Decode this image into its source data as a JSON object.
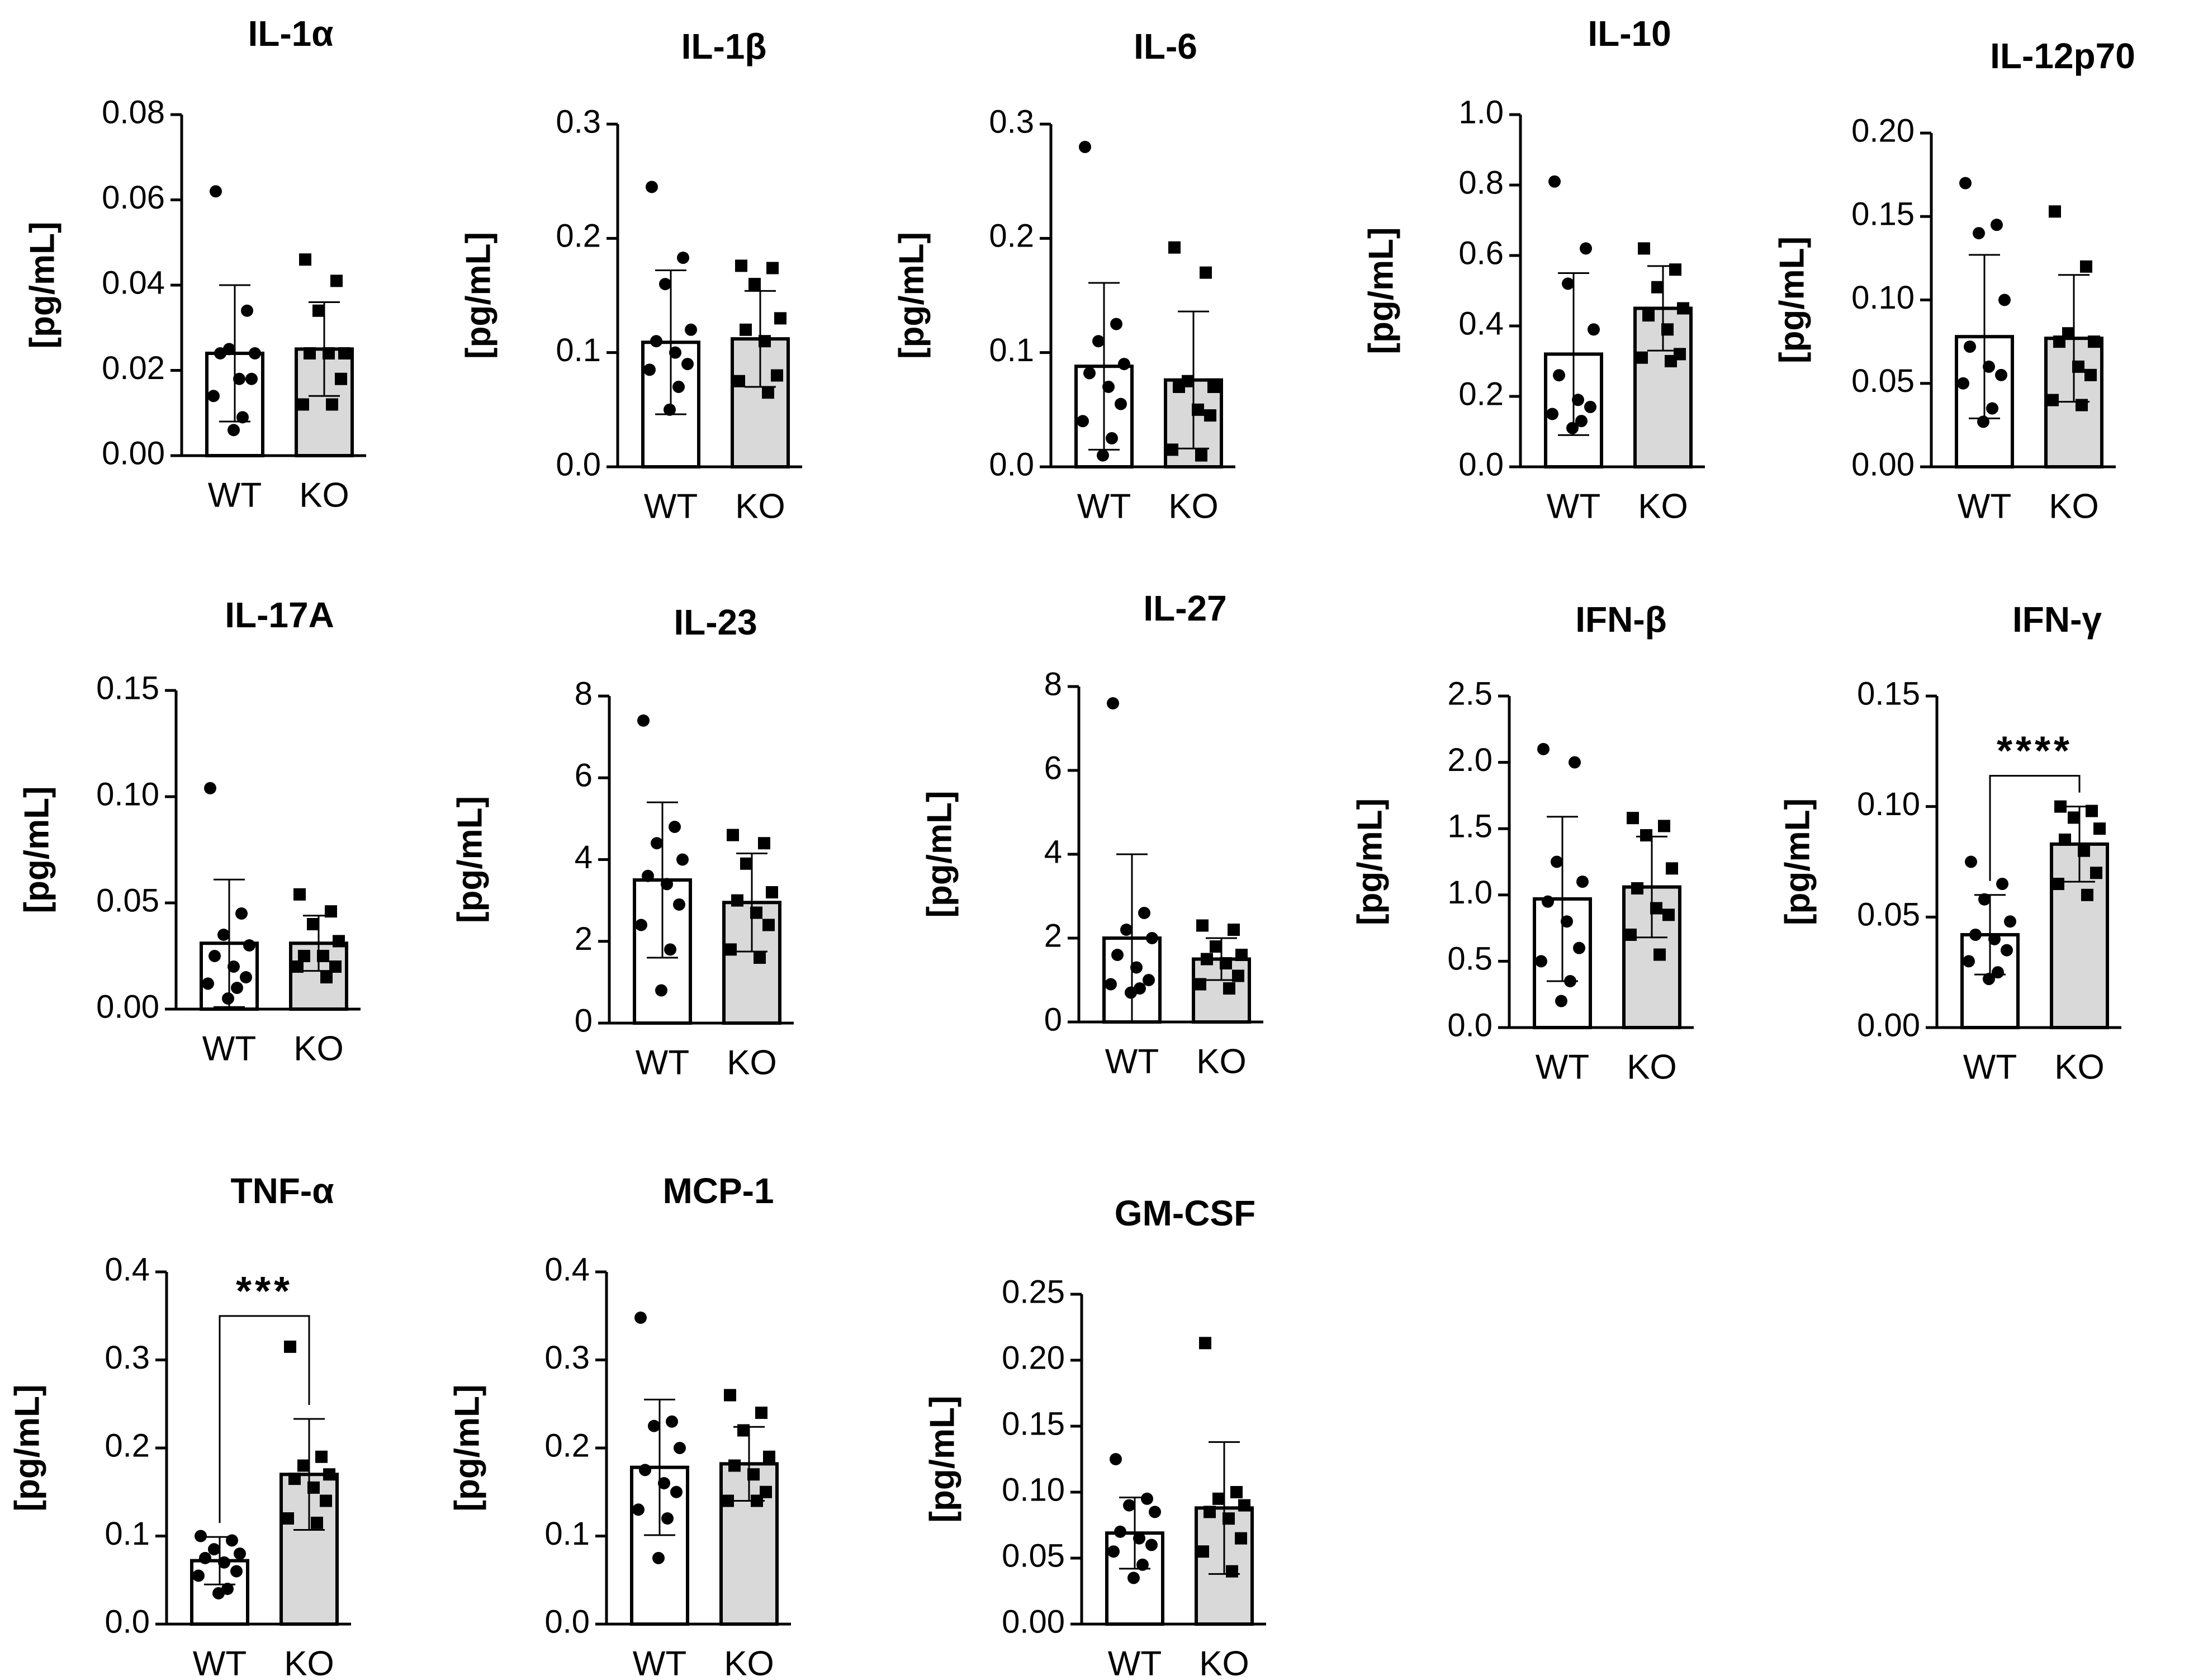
{
  "colors": {
    "wt_fill": "#ffffff",
    "ko_fill": "#d9d9d9",
    "stroke": "#000000"
  },
  "chart_data": [
    {
      "type": "bar",
      "title": "IL-1α",
      "ylabel": "[pg/mL]",
      "categories": [
        "WT",
        "KO"
      ],
      "ylim": [
        0,
        0.08
      ],
      "ticks": [
        "0.00",
        "0.02",
        "0.04",
        "0.06",
        "0.08"
      ],
      "bars": [
        {
          "category": "WT",
          "mean": 0.024,
          "sd": 0.016,
          "marker": "circle",
          "points": [
            0.062,
            0.034,
            0.025,
            0.024,
            0.024,
            0.018,
            0.018,
            0.014,
            0.009,
            0.006
          ]
        },
        {
          "category": "KO",
          "mean": 0.025,
          "sd": 0.011,
          "marker": "square",
          "points": [
            0.046,
            0.041,
            0.034,
            0.024,
            0.024,
            0.024,
            0.018,
            0.012,
            0.012
          ]
        }
      ],
      "significance": null
    },
    {
      "type": "bar",
      "title": "IL-1β",
      "ylabel": "[pg/mL]",
      "categories": [
        "WT",
        "KO"
      ],
      "ylim": [
        0,
        0.3
      ],
      "ticks": [
        "0.0",
        "0.1",
        "0.2",
        "0.3"
      ],
      "bars": [
        {
          "category": "WT",
          "mean": 0.109,
          "sd": 0.063,
          "marker": "circle",
          "points": [
            0.245,
            0.183,
            0.16,
            0.12,
            0.11,
            0.1,
            0.09,
            0.085,
            0.07,
            0.05
          ]
        },
        {
          "category": "KO",
          "mean": 0.112,
          "sd": 0.042,
          "marker": "square",
          "points": [
            0.176,
            0.174,
            0.16,
            0.13,
            0.12,
            0.11,
            0.08,
            0.075,
            0.065
          ]
        }
      ],
      "significance": null
    },
    {
      "type": "bar",
      "title": "IL-6",
      "ylabel": "[pg/mL]",
      "categories": [
        "WT",
        "KO"
      ],
      "ylim": [
        0,
        0.3
      ],
      "ticks": [
        "0.0",
        "0.1",
        "0.2",
        "0.3"
      ],
      "bars": [
        {
          "category": "WT",
          "mean": 0.088,
          "sd": 0.073,
          "marker": "circle",
          "points": [
            0.28,
            0.125,
            0.11,
            0.09,
            0.082,
            0.07,
            0.055,
            0.04,
            0.025,
            0.01
          ]
        },
        {
          "category": "KO",
          "mean": 0.076,
          "sd": 0.06,
          "marker": "square",
          "points": [
            0.192,
            0.17,
            0.075,
            0.07,
            0.07,
            0.05,
            0.045,
            0.015,
            0.01
          ]
        }
      ],
      "significance": null
    },
    {
      "type": "bar",
      "title": "IL-10",
      "ylabel": "[pg/mL]",
      "categories": [
        "WT",
        "KO"
      ],
      "ylim": [
        0,
        1.0
      ],
      "ticks": [
        "0.0",
        "0.2",
        "0.4",
        "0.6",
        "0.8",
        "1.0"
      ],
      "bars": [
        {
          "category": "WT",
          "mean": 0.32,
          "sd": 0.23,
          "marker": "circle",
          "points": [
            0.81,
            0.62,
            0.52,
            0.39,
            0.26,
            0.19,
            0.17,
            0.15,
            0.13,
            0.11
          ]
        },
        {
          "category": "KO",
          "mean": 0.45,
          "sd": 0.12,
          "marker": "square",
          "points": [
            0.62,
            0.56,
            0.51,
            0.45,
            0.43,
            0.39,
            0.32,
            0.31,
            0.3
          ]
        }
      ],
      "significance": null
    },
    {
      "type": "bar",
      "title": "IL-12p70",
      "ylabel": "[pg/mL]",
      "categories": [
        "WT",
        "KO"
      ],
      "ylim": [
        0,
        0.2
      ],
      "ticks": [
        "0.00",
        "0.05",
        "0.10",
        "0.15",
        "0.20"
      ],
      "bars": [
        {
          "category": "WT",
          "mean": 0.078,
          "sd": 0.049,
          "marker": "circle",
          "points": [
            0.17,
            0.145,
            0.14,
            0.1,
            0.072,
            0.06,
            0.055,
            0.05,
            0.035,
            0.027
          ]
        },
        {
          "category": "KO",
          "mean": 0.077,
          "sd": 0.038,
          "marker": "square",
          "points": [
            0.153,
            0.12,
            0.08,
            0.075,
            0.075,
            0.06,
            0.055,
            0.04,
            0.037
          ]
        }
      ],
      "significance": null
    },
    {
      "type": "bar",
      "title": "IL-17A",
      "ylabel": "[pg/mL]",
      "categories": [
        "WT",
        "KO"
      ],
      "ylim": [
        0,
        0.15
      ],
      "ticks": [
        "0.00",
        "0.05",
        "0.10",
        "0.15"
      ],
      "bars": [
        {
          "category": "WT",
          "mean": 0.031,
          "sd": 0.03,
          "marker": "circle",
          "points": [
            0.104,
            0.045,
            0.035,
            0.03,
            0.025,
            0.02,
            0.015,
            0.012,
            0.01,
            0.005
          ]
        },
        {
          "category": "KO",
          "mean": 0.031,
          "sd": 0.013,
          "marker": "square",
          "points": [
            0.054,
            0.046,
            0.04,
            0.032,
            0.025,
            0.025,
            0.02,
            0.02,
            0.015
          ]
        }
      ],
      "significance": null
    },
    {
      "type": "bar",
      "title": "IL-23",
      "ylabel": "[pg/mL]",
      "categories": [
        "WT",
        "KO"
      ],
      "ylim": [
        0,
        8
      ],
      "ticks": [
        "0",
        "2",
        "4",
        "6",
        "8"
      ],
      "bars": [
        {
          "category": "WT",
          "mean": 3.5,
          "sd": 1.9,
          "marker": "circle",
          "points": [
            7.4,
            4.8,
            4.4,
            4.0,
            3.6,
            3.4,
            2.9,
            2.4,
            1.8,
            0.8
          ]
        },
        {
          "category": "KO",
          "mean": 2.95,
          "sd": 1.2,
          "marker": "square",
          "points": [
            4.6,
            4.4,
            3.9,
            3.2,
            3.0,
            2.7,
            2.4,
            1.8,
            1.6
          ]
        }
      ],
      "significance": null
    },
    {
      "type": "bar",
      "title": "IL-27",
      "ylabel": "[pg/mL]",
      "categories": [
        "WT",
        "KO"
      ],
      "ylim": [
        0,
        8
      ],
      "ticks": [
        "0",
        "2",
        "4",
        "6",
        "8"
      ],
      "bars": [
        {
          "category": "WT",
          "mean": 2.0,
          "sd": 2.0,
          "marker": "circle",
          "points": [
            7.6,
            2.6,
            2.2,
            2.0,
            1.6,
            1.3,
            1.0,
            0.9,
            0.8,
            0.7
          ]
        },
        {
          "category": "KO",
          "mean": 1.5,
          "sd": 0.5,
          "marker": "square",
          "points": [
            2.3,
            2.2,
            1.8,
            1.6,
            1.5,
            1.4,
            1.1,
            0.9,
            0.8
          ]
        }
      ],
      "significance": null
    },
    {
      "type": "bar",
      "title": "IFN-β",
      "ylabel": "[pg/mL]",
      "categories": [
        "WT",
        "KO"
      ],
      "ylim": [
        0,
        2.5
      ],
      "ticks": [
        "0.0",
        "0.5",
        "1.0",
        "1.5",
        "2.0",
        "2.5"
      ],
      "bars": [
        {
          "category": "WT",
          "mean": 0.97,
          "sd": 0.62,
          "marker": "circle",
          "points": [
            2.1,
            2.0,
            1.25,
            1.1,
            0.95,
            0.8,
            0.6,
            0.5,
            0.35,
            0.2
          ]
        },
        {
          "category": "KO",
          "mean": 1.06,
          "sd": 0.38,
          "marker": "square",
          "points": [
            1.58,
            1.52,
            1.45,
            1.2,
            1.05,
            0.9,
            0.85,
            0.7,
            0.55
          ]
        }
      ],
      "significance": null
    },
    {
      "type": "bar",
      "title": "IFN-γ",
      "ylabel": "[pg/mL]",
      "categories": [
        "WT",
        "KO"
      ],
      "ylim": [
        0,
        0.15
      ],
      "ticks": [
        "0.00",
        "0.05",
        "0.10",
        "0.15"
      ],
      "bars": [
        {
          "category": "WT",
          "mean": 0.042,
          "sd": 0.018,
          "marker": "circle",
          "points": [
            0.075,
            0.065,
            0.058,
            0.048,
            0.042,
            0.04,
            0.035,
            0.03,
            0.025,
            0.022
          ]
        },
        {
          "category": "KO",
          "mean": 0.083,
          "sd": 0.017,
          "marker": "square",
          "points": [
            0.1,
            0.098,
            0.095,
            0.09,
            0.085,
            0.08,
            0.07,
            0.065,
            0.06
          ]
        }
      ],
      "significance": "****"
    },
    {
      "type": "bar",
      "title": "TNF-α",
      "ylabel": "[pg/mL]",
      "categories": [
        "WT",
        "KO"
      ],
      "ylim": [
        0,
        0.4
      ],
      "ticks": [
        "0.0",
        "0.1",
        "0.2",
        "0.3",
        "0.4"
      ],
      "bars": [
        {
          "category": "WT",
          "mean": 0.072,
          "sd": 0.027,
          "marker": "circle",
          "points": [
            0.1,
            0.095,
            0.085,
            0.08,
            0.075,
            0.07,
            0.06,
            0.055,
            0.04,
            0.035
          ]
        },
        {
          "category": "KO",
          "mean": 0.17,
          "sd": 0.063,
          "marker": "square",
          "points": [
            0.315,
            0.19,
            0.18,
            0.17,
            0.165,
            0.155,
            0.14,
            0.12,
            0.115
          ]
        }
      ],
      "significance": "***"
    },
    {
      "type": "bar",
      "title": "MCP-1",
      "ylabel": "[pg/mL]",
      "categories": [
        "WT",
        "KO"
      ],
      "ylim": [
        0,
        0.4
      ],
      "ticks": [
        "0.0",
        "0.1",
        "0.2",
        "0.3",
        "0.4"
      ],
      "bars": [
        {
          "category": "WT",
          "mean": 0.178,
          "sd": 0.077,
          "marker": "circle",
          "points": [
            0.348,
            0.23,
            0.225,
            0.2,
            0.175,
            0.16,
            0.15,
            0.13,
            0.12,
            0.075
          ]
        },
        {
          "category": "KO",
          "mean": 0.182,
          "sd": 0.042,
          "marker": "square",
          "points": [
            0.26,
            0.24,
            0.22,
            0.19,
            0.18,
            0.17,
            0.15,
            0.14,
            0.14
          ]
        }
      ],
      "significance": null
    },
    {
      "type": "bar",
      "title": "GM-CSF",
      "ylabel": "[pg/mL]",
      "categories": [
        "WT",
        "KO"
      ],
      "ylim": [
        0,
        0.25
      ],
      "ticks": [
        "0.00",
        "0.05",
        "0.10",
        "0.15",
        "0.20",
        "0.25"
      ],
      "bars": [
        {
          "category": "WT",
          "mean": 0.069,
          "sd": 0.027,
          "marker": "circle",
          "points": [
            0.125,
            0.095,
            0.09,
            0.085,
            0.07,
            0.065,
            0.06,
            0.055,
            0.045,
            0.035
          ]
        },
        {
          "category": "KO",
          "mean": 0.088,
          "sd": 0.05,
          "marker": "square",
          "points": [
            0.213,
            0.1,
            0.095,
            0.09,
            0.085,
            0.08,
            0.065,
            0.055,
            0.04
          ]
        }
      ],
      "significance": null
    }
  ]
}
